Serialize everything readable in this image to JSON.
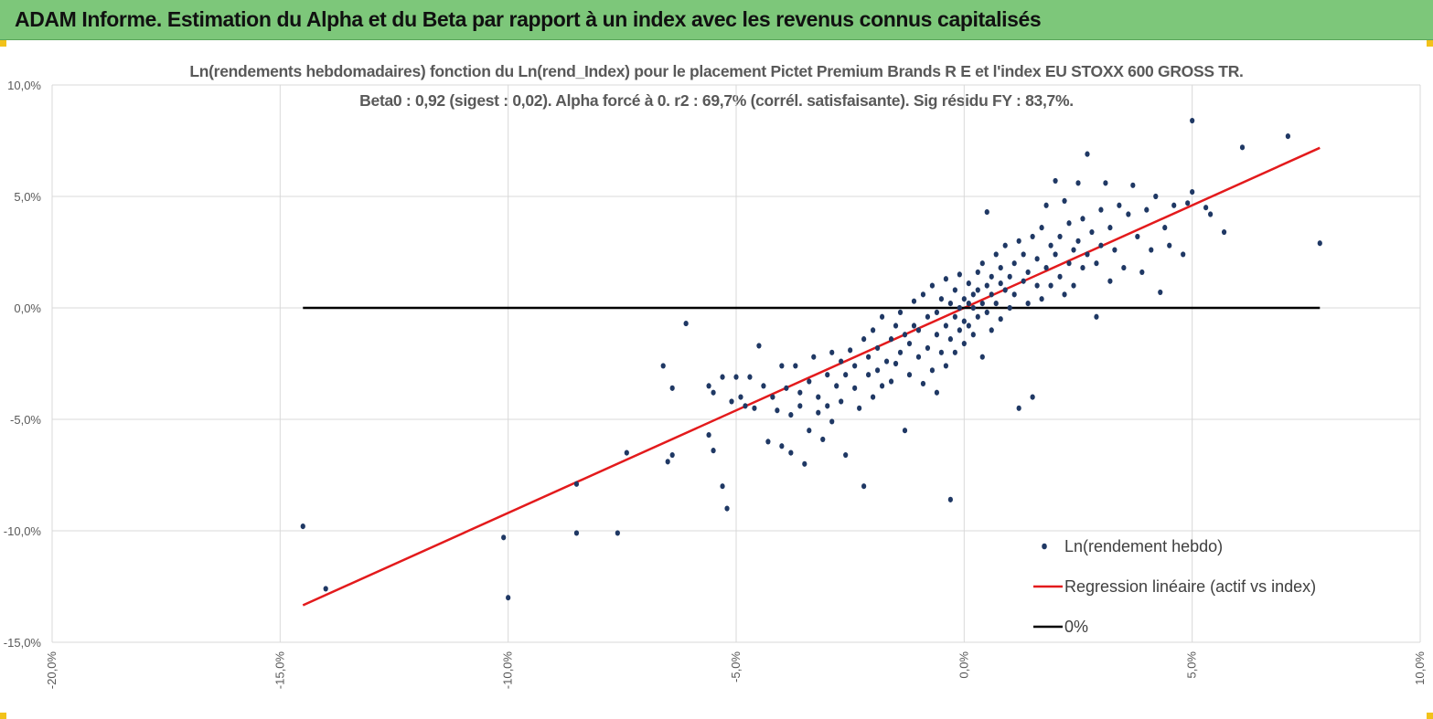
{
  "banner": {
    "title": "ADAM Informe. Estimation du Alpha et du Beta par rapport à un index avec les revenus connus capitalisés"
  },
  "chart_data": {
    "type": "scatter",
    "title": "Ln(rendements hebdomadaires) fonction du Ln(rend_Index) pour le placement Pictet Premium Brands R E et l'index EU STOXX 600 GROSS TR.",
    "subtitle": "Beta0 : 0,92  (sigest : 0,02).  Alpha forcé à 0. r2 : 69,7% (corrél. satisfaisante). Sig résidu FY : 83,7%.",
    "xlim": [
      -0.2,
      0.1
    ],
    "ylim": [
      -0.15,
      0.1
    ],
    "x_ticks": [
      -0.2,
      -0.15,
      -0.1,
      -0.05,
      0.0,
      0.05,
      0.1
    ],
    "x_tick_labels": [
      "-20,0%",
      "-15,0%",
      "-10,0%",
      "-5,0%",
      "0,0%",
      "5,0%",
      "10,0%"
    ],
    "y_ticks": [
      0.1,
      0.05,
      0.0,
      -0.05,
      -0.1,
      -0.15
    ],
    "y_tick_labels": [
      "10,0%",
      "5,0%",
      "0,0%",
      "-5,0%",
      "-10,0%",
      "-15,0%"
    ],
    "grid": true,
    "legend_position": "bottom-right",
    "series": [
      {
        "name": "Ln(rendement hebdo)",
        "kind": "scatter",
        "color": "#1f3864",
        "points": [
          [
            -0.145,
            -0.098
          ],
          [
            -0.14,
            -0.126
          ],
          [
            -0.101,
            -0.103
          ],
          [
            -0.1,
            -0.13
          ],
          [
            -0.085,
            -0.079
          ],
          [
            -0.085,
            -0.101
          ],
          [
            -0.076,
            -0.101
          ],
          [
            -0.074,
            -0.065
          ],
          [
            -0.066,
            -0.026
          ],
          [
            -0.065,
            -0.069
          ],
          [
            -0.064,
            -0.066
          ],
          [
            -0.064,
            -0.036
          ],
          [
            -0.061,
            -0.007
          ],
          [
            -0.056,
            -0.035
          ],
          [
            -0.056,
            -0.057
          ],
          [
            -0.055,
            -0.038
          ],
          [
            -0.055,
            -0.064
          ],
          [
            -0.053,
            -0.08
          ],
          [
            -0.053,
            -0.031
          ],
          [
            -0.052,
            -0.09
          ],
          [
            -0.051,
            -0.042
          ],
          [
            -0.05,
            -0.031
          ],
          [
            -0.049,
            -0.04
          ],
          [
            -0.048,
            -0.044
          ],
          [
            -0.047,
            -0.031
          ],
          [
            -0.046,
            -0.045
          ],
          [
            -0.045,
            -0.017
          ],
          [
            -0.044,
            -0.035
          ],
          [
            -0.043,
            -0.06
          ],
          [
            -0.042,
            -0.04
          ],
          [
            -0.041,
            -0.046
          ],
          [
            -0.04,
            -0.026
          ],
          [
            -0.04,
            -0.062
          ],
          [
            -0.039,
            -0.036
          ],
          [
            -0.038,
            -0.048
          ],
          [
            -0.038,
            -0.065
          ],
          [
            -0.037,
            -0.026
          ],
          [
            -0.036,
            -0.038
          ],
          [
            -0.036,
            -0.044
          ],
          [
            -0.035,
            -0.07
          ],
          [
            -0.034,
            -0.033
          ],
          [
            -0.034,
            -0.055
          ],
          [
            -0.033,
            -0.022
          ],
          [
            -0.032,
            -0.04
          ],
          [
            -0.032,
            -0.047
          ],
          [
            -0.031,
            -0.059
          ],
          [
            -0.03,
            -0.03
          ],
          [
            -0.03,
            -0.044
          ],
          [
            -0.029,
            -0.02
          ],
          [
            -0.029,
            -0.051
          ],
          [
            -0.028,
            -0.035
          ],
          [
            -0.027,
            -0.024
          ],
          [
            -0.027,
            -0.042
          ],
          [
            -0.026,
            -0.066
          ],
          [
            -0.026,
            -0.03
          ],
          [
            -0.025,
            -0.019
          ],
          [
            -0.024,
            -0.036
          ],
          [
            -0.024,
            -0.026
          ],
          [
            -0.023,
            -0.045
          ],
          [
            -0.022,
            -0.014
          ],
          [
            -0.022,
            -0.08
          ],
          [
            -0.021,
            -0.03
          ],
          [
            -0.021,
            -0.022
          ],
          [
            -0.02,
            -0.04
          ],
          [
            -0.02,
            -0.01
          ],
          [
            -0.019,
            -0.028
          ],
          [
            -0.019,
            -0.018
          ],
          [
            -0.018,
            -0.035
          ],
          [
            -0.018,
            -0.004
          ],
          [
            -0.017,
            -0.024
          ],
          [
            -0.016,
            -0.014
          ],
          [
            -0.016,
            -0.033
          ],
          [
            -0.015,
            -0.008
          ],
          [
            -0.015,
            -0.025
          ],
          [
            -0.014,
            -0.02
          ],
          [
            -0.014,
            -0.002
          ],
          [
            -0.013,
            -0.055
          ],
          [
            -0.013,
            -0.012
          ],
          [
            -0.012,
            -0.03
          ],
          [
            -0.012,
            -0.016
          ],
          [
            -0.011,
            0.003
          ],
          [
            -0.011,
            -0.008
          ],
          [
            -0.01,
            -0.022
          ],
          [
            -0.01,
            -0.01
          ],
          [
            -0.009,
            -0.034
          ],
          [
            -0.009,
            0.006
          ],
          [
            -0.008,
            -0.018
          ],
          [
            -0.008,
            -0.004
          ],
          [
            -0.007,
            -0.028
          ],
          [
            -0.007,
            0.01
          ],
          [
            -0.006,
            -0.012
          ],
          [
            -0.006,
            -0.002
          ],
          [
            -0.006,
            -0.038
          ],
          [
            -0.005,
            0.004
          ],
          [
            -0.005,
            -0.02
          ],
          [
            -0.004,
            -0.008
          ],
          [
            -0.004,
            0.013
          ],
          [
            -0.004,
            -0.026
          ],
          [
            -0.003,
            -0.014
          ],
          [
            -0.003,
            0.002
          ],
          [
            -0.003,
            -0.086
          ],
          [
            -0.002,
            -0.004
          ],
          [
            -0.002,
            0.008
          ],
          [
            -0.002,
            -0.02
          ],
          [
            -0.001,
            0.0
          ],
          [
            -0.001,
            -0.01
          ],
          [
            -0.001,
            0.015
          ],
          [
            0.0,
            -0.006
          ],
          [
            0.0,
            0.004
          ],
          [
            0.0,
            -0.016
          ],
          [
            0.001,
            0.002
          ],
          [
            0.001,
            0.011
          ],
          [
            0.001,
            -0.008
          ],
          [
            0.002,
            0.0
          ],
          [
            0.002,
            0.006
          ],
          [
            0.002,
            -0.012
          ],
          [
            0.003,
            0.016
          ],
          [
            0.003,
            -0.004
          ],
          [
            0.003,
            0.008
          ],
          [
            0.004,
            0.002
          ],
          [
            0.004,
            -0.022
          ],
          [
            0.004,
            0.02
          ],
          [
            0.005,
            0.01
          ],
          [
            0.005,
            -0.002
          ],
          [
            0.005,
            0.043
          ],
          [
            0.006,
            0.006
          ],
          [
            0.006,
            0.014
          ],
          [
            0.006,
            -0.01
          ],
          [
            0.007,
            0.024
          ],
          [
            0.007,
            0.002
          ],
          [
            0.008,
            0.011
          ],
          [
            0.008,
            0.018
          ],
          [
            0.008,
            -0.005
          ],
          [
            0.009,
            0.008
          ],
          [
            0.009,
            0.028
          ],
          [
            0.01,
            0.014
          ],
          [
            0.01,
            0.0
          ],
          [
            0.011,
            0.02
          ],
          [
            0.011,
            0.006
          ],
          [
            0.012,
            0.03
          ],
          [
            0.012,
            -0.045
          ],
          [
            0.013,
            0.012
          ],
          [
            0.013,
            0.024
          ],
          [
            0.014,
            0.002
          ],
          [
            0.014,
            0.016
          ],
          [
            0.015,
            0.032
          ],
          [
            0.015,
            -0.04
          ],
          [
            0.016,
            0.01
          ],
          [
            0.016,
            0.022
          ],
          [
            0.017,
            0.036
          ],
          [
            0.017,
            0.004
          ],
          [
            0.018,
            0.018
          ],
          [
            0.018,
            0.046
          ],
          [
            0.019,
            0.028
          ],
          [
            0.019,
            0.01
          ],
          [
            0.02,
            0.024
          ],
          [
            0.02,
            0.057
          ],
          [
            0.021,
            0.014
          ],
          [
            0.021,
            0.032
          ],
          [
            0.022,
            0.006
          ],
          [
            0.022,
            0.048
          ],
          [
            0.023,
            0.02
          ],
          [
            0.023,
            0.038
          ],
          [
            0.024,
            0.026
          ],
          [
            0.024,
            0.01
          ],
          [
            0.025,
            0.056
          ],
          [
            0.025,
            0.03
          ],
          [
            0.026,
            0.018
          ],
          [
            0.026,
            0.04
          ],
          [
            0.027,
            0.024
          ],
          [
            0.027,
            0.069
          ],
          [
            0.028,
            0.034
          ],
          [
            0.029,
            -0.004
          ],
          [
            0.029,
            0.02
          ],
          [
            0.03,
            0.044
          ],
          [
            0.03,
            0.028
          ],
          [
            0.031,
            0.056
          ],
          [
            0.032,
            0.012
          ],
          [
            0.032,
            0.036
          ],
          [
            0.033,
            0.026
          ],
          [
            0.034,
            0.046
          ],
          [
            0.035,
            0.018
          ],
          [
            0.036,
            0.042
          ],
          [
            0.037,
            0.055
          ],
          [
            0.038,
            0.032
          ],
          [
            0.039,
            0.016
          ],
          [
            0.04,
            0.044
          ],
          [
            0.041,
            0.026
          ],
          [
            0.042,
            0.05
          ],
          [
            0.043,
            0.007
          ],
          [
            0.044,
            0.036
          ],
          [
            0.045,
            0.028
          ],
          [
            0.046,
            0.046
          ],
          [
            0.048,
            0.024
          ],
          [
            0.049,
            0.047
          ],
          [
            0.05,
            0.052
          ],
          [
            0.05,
            0.084
          ],
          [
            0.053,
            0.045
          ],
          [
            0.054,
            0.042
          ],
          [
            0.057,
            0.034
          ],
          [
            0.061,
            0.072
          ],
          [
            0.071,
            0.077
          ],
          [
            0.078,
            0.029
          ]
        ]
      },
      {
        "name": "Regression linéaire (actif vs index)",
        "kind": "line",
        "color": "#e31a1c",
        "x": [
          -0.145,
          0.078
        ],
        "y": [
          -0.1334,
          0.0718
        ]
      },
      {
        "name": "0%",
        "kind": "line",
        "color": "#000000",
        "x": [
          -0.145,
          0.078
        ],
        "y": [
          0.0,
          0.0
        ]
      }
    ]
  }
}
